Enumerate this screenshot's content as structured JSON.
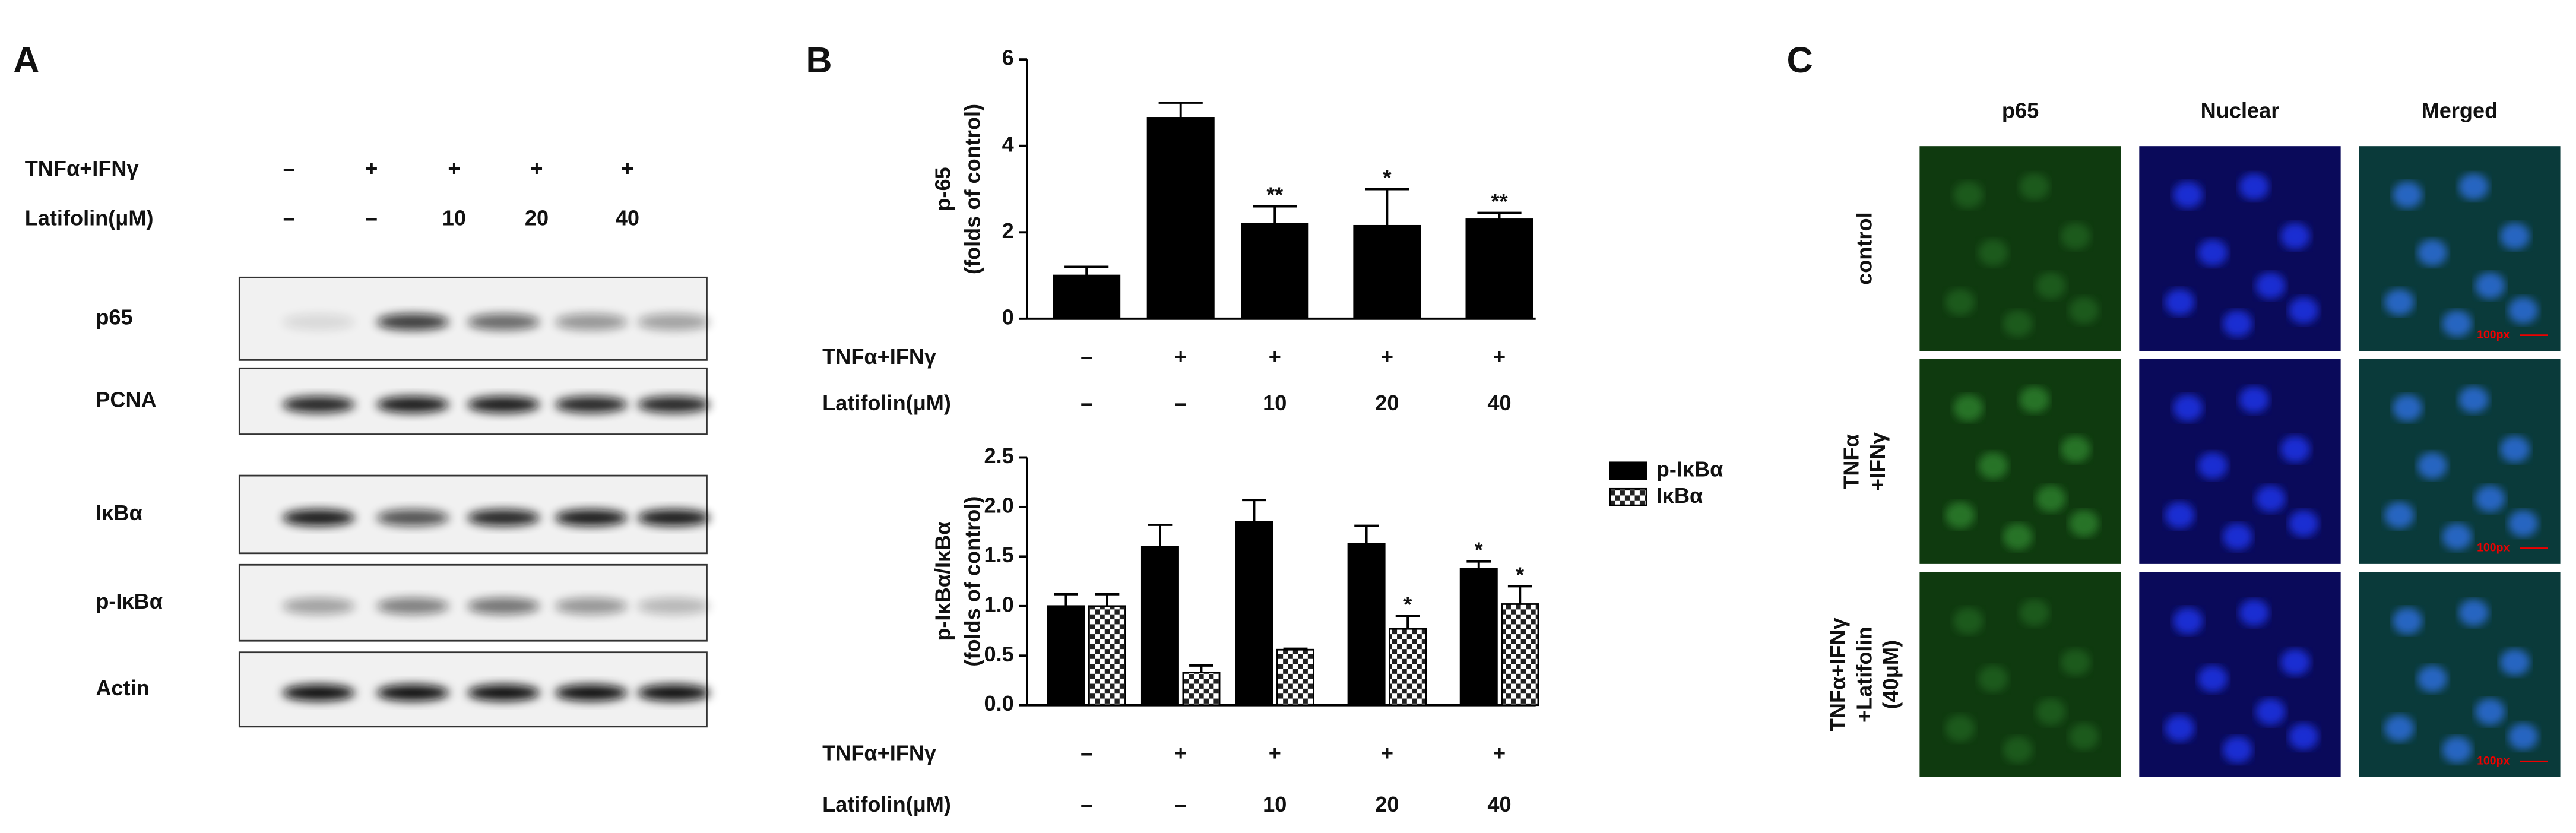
{
  "panel_a": {
    "letter": "A",
    "treatments": [
      {
        "label": "TNFα+IFNγ",
        "cells": [
          "–",
          "+",
          "+",
          "+",
          "+"
        ]
      },
      {
        "label": "Latifolin(μM)",
        "cells": [
          "–",
          "–",
          "10",
          "20",
          "40"
        ]
      }
    ],
    "blots": [
      "p65",
      "PCNA",
      "IκBα",
      "p-IκBα",
      "Actin"
    ]
  },
  "chart_data": [
    {
      "type": "bar",
      "panel_letter": "B",
      "y_label": [
        "p-65",
        "(folds of control)"
      ],
      "values": [
        1.0,
        4.65,
        2.2,
        2.15,
        2.3
      ],
      "errors": [
        0.2,
        0.35,
        0.4,
        0.85,
        0.15
      ],
      "significance": [
        null,
        null,
        "**",
        "*",
        "**"
      ],
      "color": "#000000",
      "ylim": [
        0,
        6
      ],
      "yticks": [
        0,
        2,
        4,
        6
      ],
      "treatments": [
        {
          "label": "TNFα+IFNγ",
          "cells": [
            "–",
            "+",
            "+",
            "+",
            "+"
          ]
        },
        {
          "label": "Latifolin(μM)",
          "cells": [
            "–",
            "–",
            "10",
            "20",
            "40"
          ]
        }
      ]
    },
    {
      "type": "bar",
      "y_label": [
        "p-IκBα/IκBα",
        "(folds of control)"
      ],
      "series": [
        {
          "name": "p-IκBα",
          "color": "#000000",
          "values": [
            1.0,
            1.6,
            1.85,
            1.63,
            1.38
          ],
          "errors": [
            0.12,
            0.22,
            0.22,
            0.18,
            0.07
          ],
          "significance": [
            null,
            null,
            null,
            null,
            "*"
          ]
        },
        {
          "name": "IκBα",
          "color": "checker",
          "values": [
            1.0,
            0.33,
            0.56,
            0.77,
            1.02
          ],
          "errors": [
            0.12,
            0.07,
            0.01,
            0.13,
            0.18
          ],
          "significance": [
            null,
            null,
            null,
            "*",
            "*"
          ]
        }
      ],
      "legend": "right",
      "ylim": [
        0,
        2.5
      ],
      "yticks": [
        {
          "value": 0,
          "label": "0.0"
        },
        0.5,
        {
          "value": 1,
          "label": "1.0"
        },
        1.5,
        {
          "value": 2,
          "label": "2.0"
        },
        2.5
      ],
      "treatments": [
        {
          "label": "TNFα+IFNγ",
          "cells": [
            "–",
            "+",
            "+",
            "+",
            "+"
          ]
        },
        {
          "label": "Latifolin(μM)",
          "cells": [
            "–",
            "–",
            "10",
            "20",
            "40"
          ]
        }
      ]
    }
  ],
  "panel_c": {
    "letter": "C",
    "columns": [
      "p65",
      "Nuclear",
      "Merged"
    ],
    "rows": [
      [
        "control"
      ],
      [
        "TNFα",
        "+IFNγ"
      ],
      [
        "TNFα+IFNγ",
        "+Latifolin",
        "(40μM)"
      ]
    ],
    "scale_bar": "100px"
  }
}
